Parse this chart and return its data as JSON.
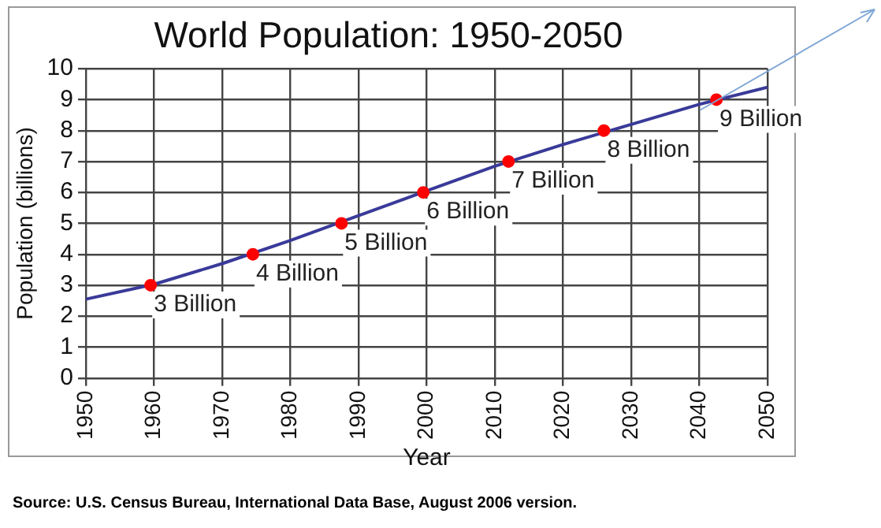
{
  "chart_data": {
    "type": "line",
    "title": "World Population: 1950-2050",
    "xlabel": "Year",
    "ylabel": "Population (billions)",
    "xlim": [
      1950,
      2050
    ],
    "xticks": [
      1950,
      1960,
      1970,
      1980,
      1990,
      2000,
      2010,
      2020,
      2030,
      2040,
      2050
    ],
    "ylim": [
      0,
      10
    ],
    "yticks": [
      0,
      1,
      2,
      3,
      4,
      5,
      6,
      7,
      8,
      9,
      10
    ],
    "grid": true,
    "legend": false,
    "series": [
      {
        "color": "#3a3a9a",
        "marker": "none",
        "x": [
          1950,
          1960,
          1970,
          1980,
          1990,
          2000,
          2010,
          2020,
          2030,
          2040,
          2050
        ],
        "values": [
          2.55,
          3.03,
          3.7,
          4.45,
          5.25,
          6.05,
          6.85,
          7.55,
          8.2,
          8.85,
          9.4
        ]
      },
      {
        "type": "scatter",
        "color": "#ff0000",
        "marker": "circle",
        "x": [
          1959.5,
          1974.5,
          1987.5,
          1999.5,
          2012,
          2026,
          2042.5
        ],
        "values": [
          3,
          4,
          5,
          6,
          7,
          8,
          9
        ]
      }
    ],
    "annotations": [
      {
        "text": "3 Billion",
        "x": 1959.5,
        "y": 3
      },
      {
        "text": "4 Billion",
        "x": 1974.5,
        "y": 4
      },
      {
        "text": "5 Billion",
        "x": 1987.5,
        "y": 5
      },
      {
        "text": "6 Billion",
        "x": 1999.5,
        "y": 6
      },
      {
        "text": "7 Billion",
        "x": 2012,
        "y": 7
      },
      {
        "text": "8 Billion",
        "x": 2026,
        "y": 8
      },
      {
        "text": "9 Billion",
        "x": 2042.5,
        "y": 9
      },
      "Source: U.S. Census Bureau, International Data Base, August 2006 version."
    ]
  }
}
